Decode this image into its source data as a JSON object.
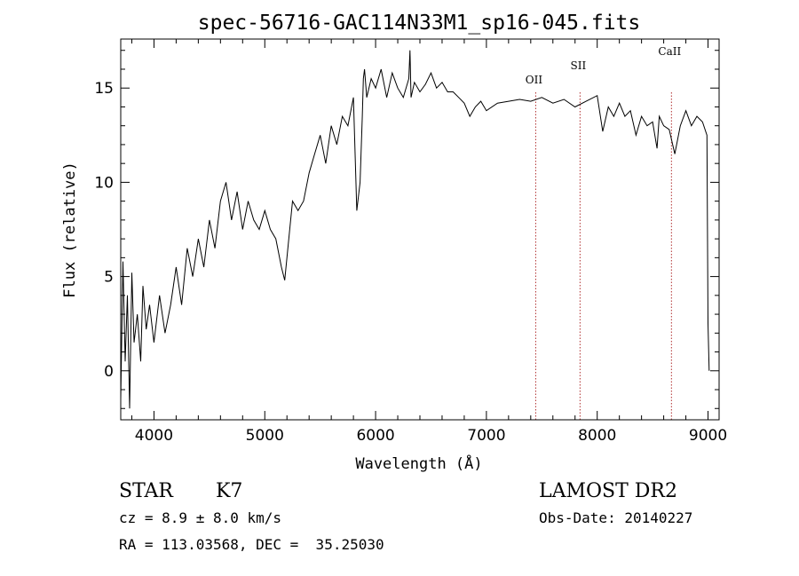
{
  "chart_data": {
    "type": "line",
    "title": "spec-56716-GAC114N33M1_sp16-045.fits",
    "xlabel": "Wavelength (Å)",
    "ylabel": "Flux (relative)",
    "xlim": [
      3700,
      9100
    ],
    "ylim": [
      -2.6,
      17.6
    ],
    "xticks": [
      4000,
      5000,
      6000,
      7000,
      8000,
      9000
    ],
    "yticks": [
      0,
      5,
      10,
      15
    ],
    "grid": false,
    "series": [
      {
        "color": "#000000",
        "x": [
          3700,
          3720,
          3740,
          3760,
          3780,
          3800,
          3820,
          3850,
          3880,
          3900,
          3930,
          3960,
          4000,
          4050,
          4100,
          4150,
          4200,
          4250,
          4300,
          4350,
          4400,
          4450,
          4500,
          4550,
          4600,
          4650,
          4700,
          4750,
          4800,
          4850,
          4900,
          4950,
          5000,
          5050,
          5100,
          5150,
          5180,
          5200,
          5250,
          5300,
          5350,
          5400,
          5450,
          5500,
          5550,
          5600,
          5650,
          5700,
          5750,
          5800,
          5830,
          5860,
          5880,
          5890,
          5900,
          5920,
          5960,
          6000,
          6050,
          6100,
          6150,
          6200,
          6250,
          6300,
          6310,
          6320,
          6350,
          6400,
          6450,
          6500,
          6550,
          6600,
          6650,
          6700,
          6750,
          6800,
          6850,
          6900,
          6950,
          7000,
          7100,
          7200,
          7300,
          7400,
          7500,
          7600,
          7700,
          7800,
          7900,
          8000,
          8050,
          8100,
          8150,
          8200,
          8250,
          8300,
          8350,
          8400,
          8450,
          8500,
          8540,
          8560,
          8600,
          8650,
          8700,
          8750,
          8800,
          8850,
          8900,
          8950,
          8990,
          9000,
          9010
        ],
        "y": [
          -1.5,
          5.8,
          0.5,
          4,
          -2,
          5.2,
          1.5,
          3,
          0.5,
          4.5,
          2.2,
          3.5,
          1.5,
          4,
          2,
          3.5,
          5.5,
          3.5,
          6.5,
          5,
          7,
          5.5,
          8,
          6.5,
          9,
          10,
          8,
          9.5,
          7.5,
          9,
          8,
          7.5,
          8.5,
          7.5,
          7,
          5.5,
          4.8,
          6,
          9,
          8.5,
          9,
          10.5,
          11.5,
          12.5,
          11,
          13,
          12,
          13.5,
          13,
          14.5,
          8.5,
          10,
          13.5,
          15.5,
          16,
          14.5,
          15.5,
          15,
          16,
          14.5,
          15.8,
          15,
          14.5,
          15.5,
          17,
          14.5,
          15.3,
          14.8,
          15.2,
          15.8,
          15,
          15.3,
          14.8,
          14.8,
          14.5,
          14.2,
          13.5,
          14,
          14.3,
          13.8,
          14.2,
          14.3,
          14.4,
          14.3,
          14.5,
          14.2,
          14.4,
          14,
          14.3,
          14.6,
          12.7,
          14,
          13.5,
          14.2,
          13.5,
          13.8,
          12.5,
          13.5,
          13,
          13.2,
          11.8,
          13.5,
          13,
          12.8,
          11.5,
          13,
          13.8,
          13,
          13.5,
          13.2,
          12.5,
          2.5,
          0
        ]
      }
    ],
    "line_markers": [
      {
        "label": "OII",
        "x": 7445
      },
      {
        "label": "SII",
        "x": 7845
      },
      {
        "label": "CaII",
        "x": 8670
      }
    ],
    "marker_color": "#b03030"
  },
  "info": {
    "class_label": "STAR",
    "subclass_label": "K7",
    "survey_label": "LAMOST DR2",
    "cz_text": "cz = 8.9 ± 8.0 km/s",
    "obsdate_text": "Obs-Date: 20140227",
    "radec_text": "RA = 113.03568, DEC =  35.25030"
  }
}
